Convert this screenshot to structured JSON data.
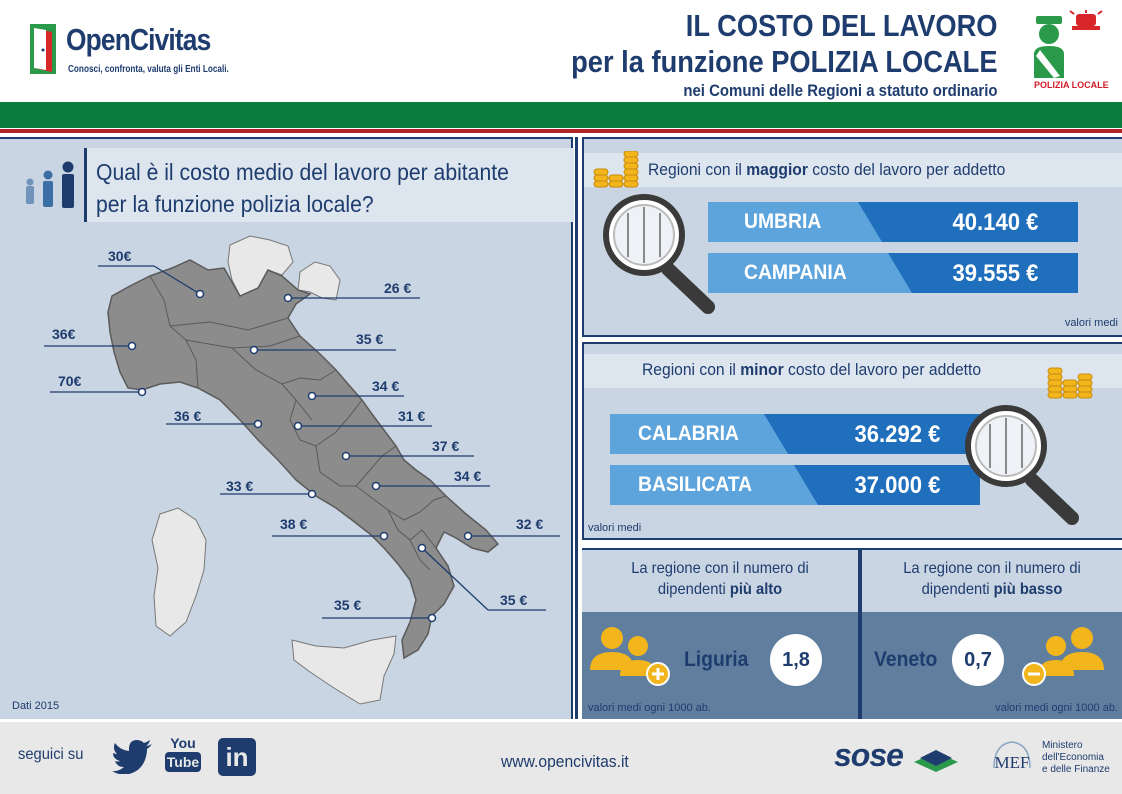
{
  "header": {
    "brand": "OpenCivitas",
    "tagline": "Conosci, confronta, valuta gli Enti Locali.",
    "title_line1": "IL COSTO DEL LAVORO",
    "title_line2": "per la funzione POLIZIA LOCALE",
    "subtitle": "nei Comuni delle Regioni a statuto ordinario",
    "badge": "POLIZIA LOCALE"
  },
  "map": {
    "question_line1": "Qual è il costo medio del lavoro per abitante",
    "question_line2": "per la funzione polizia locale?",
    "labels": {
      "piemonte_north": "30€",
      "veneto": "26 €",
      "piemonte": "36€",
      "emilia": "35 €",
      "valle_aosta": "70€",
      "marche": "34 €",
      "toscana": "36 €",
      "umbria": "31 €",
      "abruzzo": "37 €",
      "molise": "34 €",
      "lazio": "33 €",
      "puglia": "32 €",
      "campania": "38 €",
      "basilicata": "35 €",
      "calabria": "35 €"
    },
    "source": "Dati 2015"
  },
  "highest": {
    "title_pre": "Regioni con il ",
    "title_bold": "maggior",
    "title_post": " costo del lavoro per addetto",
    "rows": [
      {
        "name": "UMBRIA",
        "value": "40.140 €"
      },
      {
        "name": "CAMPANIA",
        "value": "39.555 €"
      }
    ],
    "note": "valori medi"
  },
  "lowest": {
    "title_pre": "Regioni con il ",
    "title_bold": "minor",
    "title_post": " costo del lavoro per addetto",
    "rows": [
      {
        "name": "CALABRIA",
        "value": "36.292 €"
      },
      {
        "name": "BASILICATA",
        "value": "37.000 €"
      }
    ],
    "note": "valori medi"
  },
  "staff_high": {
    "line1": "La regione con il numero di",
    "line2_pre": "dipendenti ",
    "line2_bold": "più alto",
    "region": "Liguria",
    "value": "1,8",
    "note": "valori medi ogni 1000 ab."
  },
  "staff_low": {
    "line1": "La regione con il numero di",
    "line2_pre": "dipendenti ",
    "line2_bold": "più basso",
    "region": "Veneto",
    "value": "0,7",
    "note": "valori medi ogni 1000 ab."
  },
  "footer": {
    "follow": "seguici su",
    "youtube_top": "You",
    "youtube_bottom": "Tube",
    "linkedin": "in",
    "website": "www.opencivitas.it",
    "sose": "sose",
    "mef": "MEF",
    "ministry_line1": "Ministero",
    "ministry_line2": "dell'Economia",
    "ministry_line3": "e delle Finanze"
  },
  "colors": {
    "navy": "#1e3c6e",
    "green": "#0a7c3d",
    "red": "#b0232a",
    "light_blue": "#5ea4dc",
    "dark_blue": "#1f6fbc",
    "panel": "#c9d5e2",
    "gold": "#f2b51c"
  }
}
